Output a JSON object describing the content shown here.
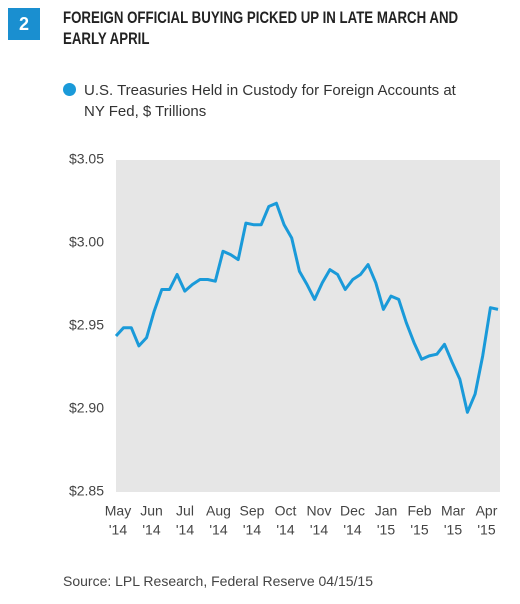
{
  "badge": "2",
  "chart_data": {
    "type": "line",
    "title": "FOREIGN OFFICIAL BUYING PICKED UP IN LATE MARCH AND EARLY APRIL",
    "x_labels": [
      "May",
      "Jun",
      "Jul",
      "Aug",
      "Sep",
      "Oct",
      "Nov",
      "Dec",
      "Jan",
      "Feb",
      "Mar",
      "Apr"
    ],
    "x_label_years": [
      "'14",
      "'14",
      "'14",
      "'14",
      "'14",
      "'14",
      "'14",
      "'14",
      "'15",
      "'15",
      "'15",
      "'15"
    ],
    "series": [
      {
        "name": "U.S. Treasuries Held in Custody for Foreign Accounts at NY Fed, $ Trillions",
        "color": "#1a9ad9",
        "values": [
          2.944,
          2.949,
          2.949,
          2.938,
          2.943,
          2.959,
          2.972,
          2.972,
          2.981,
          2.971,
          2.975,
          2.978,
          2.978,
          2.977,
          2.995,
          2.993,
          2.99,
          3.012,
          3.011,
          3.011,
          3.022,
          3.024,
          3.011,
          3.003,
          2.983,
          2.975,
          2.966,
          2.976,
          2.984,
          2.981,
          2.972,
          2.978,
          2.981,
          2.987,
          2.976,
          2.96,
          2.968,
          2.966,
          2.952,
          2.94,
          2.93,
          2.932,
          2.933,
          2.939,
          2.928,
          2.918,
          2.898,
          2.909,
          2.932,
          2.961,
          2.96
        ]
      }
    ],
    "ylim": [
      2.85,
      3.05
    ],
    "yticks": [
      {
        "value": 2.85,
        "label": "$2.85"
      },
      {
        "value": 2.9,
        "label": "$2.90"
      },
      {
        "value": 2.95,
        "label": "$2.95"
      },
      {
        "value": 3.0,
        "label": "$3.00"
      },
      {
        "value": 3.05,
        "label": "$3.05"
      }
    ],
    "source": "Source: LPL Research, Federal Reserve   04/15/15"
  }
}
